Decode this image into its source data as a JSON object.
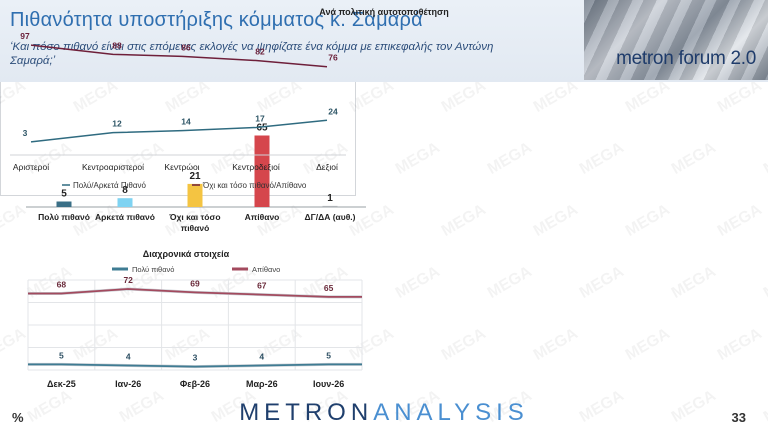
{
  "header": {
    "title": "Πιθανότητα υποστήριξης κόμματος κ. Σαμαρά",
    "subtitle": "‘Και πόσο πιθανό είναι στις επόμενες εκλογές να ψηφίζατε ένα κόμμα με επικεφαλής τον Αντώνη Σαμαρά;’",
    "badge_text": "metron forum 2.0"
  },
  "footer": {
    "percent_sign": "%",
    "page_number": "33",
    "brand_part1": "METRON",
    "brand_part2": "ANALYSIS"
  },
  "watermark_text": "MEGA",
  "chart_data": [
    {
      "type": "bar",
      "categories": [
        "Πολύ πιθανό",
        "Αρκετά πιθανό",
        "Όχι και τόσο πιθανό",
        "Απίθανο",
        "ΔΓ/ΔΑ (αυθ.)"
      ],
      "values": [
        5,
        8,
        21,
        65,
        1
      ],
      "colors": [
        "#3a6f86",
        "#7fd3f2",
        "#f4c442",
        "#d5464c",
        "#b0b4b8"
      ],
      "title": "",
      "xlabel": "",
      "ylabel": "",
      "ylim": [
        0,
        70
      ],
      "grid": false
    },
    {
      "type": "line",
      "title": "Διαχρονικά στοιχεία",
      "categories": [
        "Δεκ-25",
        "Ιαν-26",
        "Φεβ-26",
        "Μαρ-26",
        "Ιουν-26"
      ],
      "series": [
        {
          "name": "Πολύ πιθανό",
          "values": [
            5,
            4,
            3,
            4,
            5
          ],
          "color": "#3f7c93"
        },
        {
          "name": "Απίθανο",
          "values": [
            68,
            72,
            69,
            67,
            65
          ],
          "color": "#a34a5e"
        }
      ],
      "ylim": [
        0,
        80
      ],
      "legend": "top",
      "grid": true
    },
    {
      "type": "line",
      "title": "Ανά πολιτική αυτοτοποθέτηση",
      "categories": [
        "Αριστεροί",
        "Κεντροαριστεροί",
        "Κεντρώοι",
        "Κεντροδεξιοί",
        "Δεξιοί"
      ],
      "series": [
        {
          "name": "Πολύ/Αρκετά Πιθανό",
          "values": [
            3,
            12,
            14,
            17,
            24
          ],
          "color": "#2f6b80"
        },
        {
          "name": "Όχι και τόσο πιθανό/Απίθανο",
          "values": [
            97,
            88,
            86,
            82,
            76
          ],
          "color": "#6e1f3a"
        }
      ],
      "ylim": [
        0,
        100
      ],
      "legend": "bottom",
      "grid": false
    }
  ]
}
